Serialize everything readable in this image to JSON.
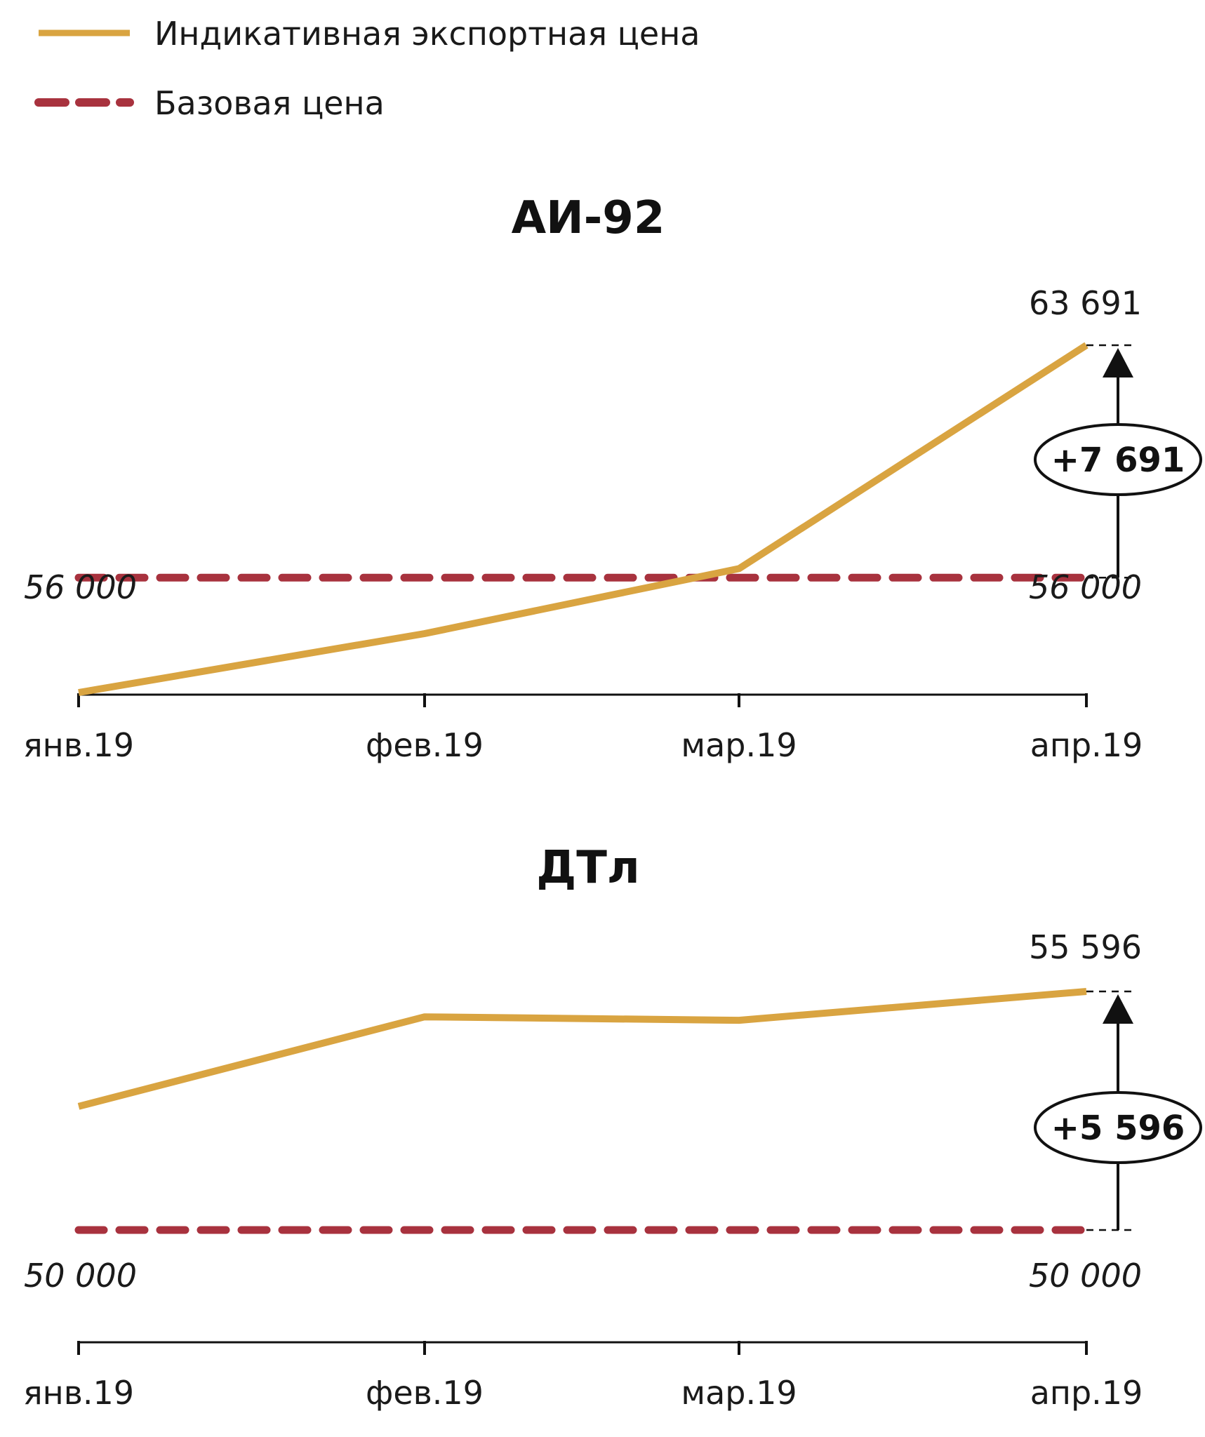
{
  "legend": {
    "items": [
      {
        "label": "Индикативная экспортная цена",
        "color": "#d9a441",
        "style": "solid"
      },
      {
        "label": "Базовая цена",
        "color": "#a8323e",
        "style": "dashed"
      }
    ]
  },
  "chart_data": [
    {
      "type": "line",
      "title": "АИ-92",
      "categories": [
        "янв.19",
        "фев.19",
        "мар.19",
        "апр.19"
      ],
      "series": [
        {
          "name": "Индикативная экспортная цена",
          "values": [
            52200,
            54150,
            56300,
            63691
          ]
        },
        {
          "name": "Базовая цена",
          "values": [
            56000,
            56000,
            56000,
            56000
          ]
        }
      ],
      "ylim": [
        52200,
        63691
      ],
      "base_label": "56 000",
      "last_value_label": "63 691",
      "difference_label": "+7 691"
    },
    {
      "type": "line",
      "title": "ДТл",
      "categories": [
        "янв.19",
        "фев.19",
        "мар.19",
        "апр.19"
      ],
      "series": [
        {
          "name": "Индикативная экспортная цена",
          "values": [
            52900,
            55000,
            54920,
            55596
          ]
        },
        {
          "name": "Базовая цена",
          "values": [
            50000,
            50000,
            50000,
            50000
          ]
        }
      ],
      "ylim": [
        50000,
        55596
      ],
      "base_label": "50 000",
      "last_value_label": "55 596",
      "difference_label": "+5 596"
    }
  ]
}
